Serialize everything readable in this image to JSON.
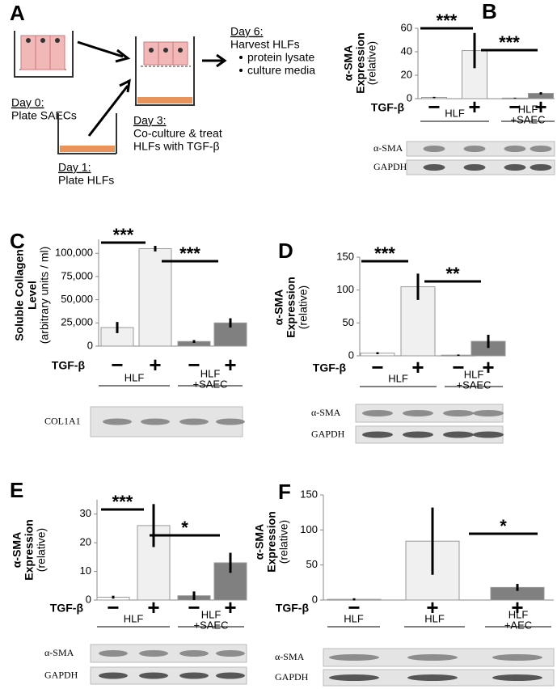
{
  "panel_a": {
    "letter": "A",
    "day0": {
      "day": "Day 0:",
      "text": "Plate SAECs"
    },
    "day1": {
      "day": "Day 1:",
      "text": "Plate HLFs"
    },
    "day3": {
      "day": "Day 3:",
      "text": [
        "Co-culture & treat",
        "HLFs with TGF-β"
      ]
    },
    "day6": {
      "day": "Day 6:",
      "text": "Harvest HLFs",
      "items": [
        "protein lysate",
        "culture media"
      ]
    }
  },
  "chart_data": [
    {
      "type": "bar",
      "letter": "B",
      "ylabel": [
        "α-SMA",
        "Expression",
        "(relative)"
      ],
      "treatment_label": "TGF-β",
      "categories": [
        "−",
        "+",
        "−",
        "+"
      ],
      "values": [
        1,
        41,
        0.5,
        4.5
      ],
      "errors": [
        0.5,
        15,
        0.3,
        1
      ],
      "colors": [
        "#ffffff",
        "#f0f0f0",
        "#808080",
        "#808080"
      ],
      "ylim": [
        0,
        60
      ],
      "yticks": [
        0,
        20,
        40,
        60
      ],
      "groups": [
        [
          "HLF"
        ],
        [
          "HLF",
          "+SAEC"
        ]
      ],
      "significance": [
        "***",
        "***"
      ],
      "blot_rows": [
        "α-SMA",
        "GAPDH"
      ]
    },
    {
      "type": "bar",
      "letter": "C",
      "ylabel": [
        "Soluble Collagen",
        "Level",
        "(arbitrary units / ml)"
      ],
      "treatment_label": "TGF-β",
      "categories": [
        "−",
        "+",
        "−",
        "+"
      ],
      "values": [
        20000,
        105000,
        5000,
        25000
      ],
      "errors": [
        6000,
        3000,
        1500,
        5000
      ],
      "colors": [
        "#f0f0f0",
        "#f0f0f0",
        "#808080",
        "#808080"
      ],
      "ylim": [
        0,
        115000
      ],
      "yticks": [
        0,
        {
          "value": 25000,
          "label": "25,000"
        },
        {
          "value": 50000,
          "label": "50,000"
        },
        {
          "value": 75000,
          "label": "75,000"
        },
        {
          "value": 100000,
          "label": "100,000"
        }
      ],
      "groups": [
        [
          "HLF"
        ],
        [
          "HLF",
          "+SAEC"
        ]
      ],
      "significance": [
        "***",
        "***"
      ],
      "blot_rows": [
        "COL1A1"
      ]
    },
    {
      "type": "bar",
      "letter": "D",
      "ylabel": [
        "α-SMA",
        "Expression",
        "(relative)"
      ],
      "treatment_label": "TGF-β",
      "categories": [
        "−",
        "+",
        "−",
        "+"
      ],
      "values": [
        4,
        105,
        1,
        22
      ],
      "errors": [
        1.5,
        20,
        1,
        10
      ],
      "colors": [
        "#ffffff",
        "#f0f0f0",
        "#808080",
        "#808080"
      ],
      "ylim": [
        0,
        150
      ],
      "yticks": [
        0,
        50,
        100,
        150
      ],
      "groups": [
        [
          "HLF"
        ],
        [
          "HLF",
          "+SAEC"
        ]
      ],
      "significance": [
        "***",
        "**"
      ],
      "blot_rows": [
        "α-SMA",
        "GAPDH"
      ]
    },
    {
      "type": "bar",
      "letter": "E",
      "ylabel": [
        "α-SMA",
        "Expression",
        "(relative)"
      ],
      "treatment_label": "TGF-β",
      "categories": [
        "−",
        "+",
        "−",
        "+"
      ],
      "values": [
        1,
        26,
        1.5,
        13
      ],
      "errors": [
        0.5,
        7.5,
        1.5,
        3.5
      ],
      "colors": [
        "#ffffff",
        "#f0f0f0",
        "#808080",
        "#808080"
      ],
      "ylim": [
        0,
        35
      ],
      "yticks": [
        0,
        10,
        20,
        30
      ],
      "groups": [
        [
          "HLF"
        ],
        [
          "HLF",
          "+SAEC"
        ]
      ],
      "significance": [
        "***",
        "*"
      ],
      "blot_rows": [
        "α-SMA",
        "GAPDH"
      ]
    },
    {
      "type": "bar",
      "letter": "F",
      "ylabel": [
        "α-SMA",
        "Expression",
        "(relative)"
      ],
      "treatment_label": "TGF-β",
      "categories": [
        "−",
        "+",
        "+"
      ],
      "values": [
        1,
        84,
        18
      ],
      "errors": [
        1.5,
        48,
        5
      ],
      "colors": [
        "#ffffff",
        "#f0f0f0",
        "#808080"
      ],
      "ylim": [
        0,
        150
      ],
      "yticks": [
        0,
        50,
        100,
        150
      ],
      "groups": [
        [
          "HLF"
        ],
        [
          "HLF"
        ],
        [
          "HLF",
          "+AEC"
        ]
      ],
      "significance": [
        "*"
      ],
      "blot_rows": [
        "α-SMA",
        "GAPDH"
      ]
    }
  ]
}
